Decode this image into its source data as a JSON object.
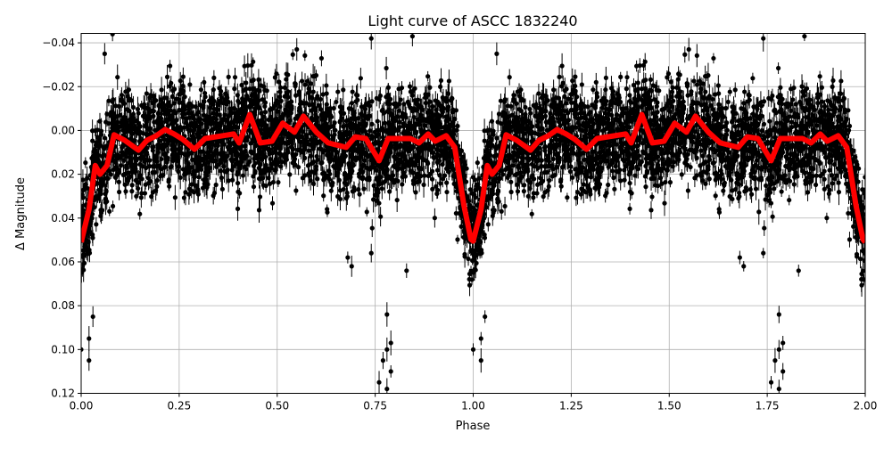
{
  "chart_data": {
    "type": "scatter",
    "title": "Light curve of ASCC 1832240",
    "xlabel": "Phase",
    "ylabel": "Δ Magnitude",
    "xlim": [
      0,
      2
    ],
    "ylim": [
      0.12,
      -0.0443
    ],
    "y_inverted": true,
    "grid": true,
    "xticks": [
      "0.00",
      "0.25",
      "0.50",
      "0.75",
      "1.00",
      "1.25",
      "1.50",
      "1.75",
      "2.00"
    ],
    "xtick_values": [
      0,
      0.25,
      0.5,
      0.75,
      1,
      1.25,
      1.5,
      1.75,
      2
    ],
    "yticks": [
      "−0.04",
      "−0.02",
      "0.00",
      "0.02",
      "0.04",
      "0.06",
      "0.08",
      "0.10",
      "0.12"
    ],
    "ytick_values": [
      -0.04,
      -0.02,
      0,
      0.02,
      0.04,
      0.06,
      0.08,
      0.1,
      0.12
    ],
    "series": [
      {
        "kind": "errorbar",
        "color": "#000000",
        "note_points": [
          [
            0.0,
            0.1
          ],
          [
            0.02,
            0.105
          ],
          [
            0.02,
            0.095
          ],
          [
            0.03,
            0.085
          ],
          [
            0.76,
            0.115
          ],
          [
            0.78,
            0.118
          ],
          [
            0.77,
            0.105
          ],
          [
            0.78,
            0.1
          ],
          [
            0.79,
            0.097
          ],
          [
            0.79,
            0.11
          ],
          [
            0.78,
            0.084
          ],
          [
            0.83,
            0.064
          ],
          [
            0.74,
            0.056
          ],
          [
            0.68,
            0.058
          ],
          [
            0.69,
            0.062
          ],
          [
            0.08,
            -0.044
          ],
          [
            0.845,
            -0.043
          ],
          [
            0.74,
            -0.042
          ],
          [
            0.55,
            -0.037
          ],
          [
            0.06,
            -0.035
          ],
          [
            1.0,
            0.1
          ],
          [
            1.02,
            0.105
          ],
          [
            1.02,
            0.095
          ],
          [
            1.03,
            0.085
          ],
          [
            1.76,
            0.115
          ],
          [
            1.78,
            0.118
          ],
          [
            1.77,
            0.105
          ],
          [
            1.78,
            0.1
          ],
          [
            1.79,
            0.097
          ],
          [
            1.79,
            0.11
          ],
          [
            1.78,
            0.084
          ],
          [
            1.83,
            0.064
          ],
          [
            1.74,
            0.056
          ],
          [
            1.68,
            0.058
          ],
          [
            1.69,
            0.062
          ],
          [
            1.845,
            -0.043
          ],
          [
            1.74,
            -0.042
          ],
          [
            1.55,
            -0.037
          ],
          [
            1.06,
            -0.035
          ]
        ]
      },
      {
        "kind": "line",
        "color": "#ff0000",
        "x": [
          0,
          0.02,
          0.036,
          0.048,
          0.066,
          0.084,
          0.111,
          0.146,
          0.168,
          0.191,
          0.214,
          0.237,
          0.259,
          0.289,
          0.316,
          0.389,
          0.403,
          0.43,
          0.457,
          0.487,
          0.514,
          0.544,
          0.567,
          0.6,
          0.63,
          0.676,
          0.699,
          0.726,
          0.76,
          0.783,
          0.84,
          0.862,
          0.885,
          0.903,
          0.931,
          0.953,
          0.976,
          0.994,
          1.0,
          1.02,
          1.036,
          1.048,
          1.066,
          1.084,
          1.111,
          1.146,
          1.168,
          1.191,
          1.214,
          1.237,
          1.259,
          1.289,
          1.316,
          1.389,
          1.403,
          1.43,
          1.457,
          1.487,
          1.514,
          1.544,
          1.567,
          1.6,
          1.63,
          1.676,
          1.699,
          1.726,
          1.76,
          1.783,
          1.84,
          1.862,
          1.885,
          1.903,
          1.931,
          1.953,
          1.976,
          1.994,
          2.0
        ],
        "y": [
          0.051,
          0.036,
          0.016,
          0.02,
          0.016,
          0.002,
          0.0045,
          0.009,
          0.0045,
          0.0025,
          -0.0004,
          0.0016,
          0.004,
          0.0086,
          0.0037,
          0.0016,
          0.0057,
          -0.0073,
          0.0057,
          0.0049,
          -0.0033,
          0.0008,
          -0.0065,
          0.0008,
          0.0057,
          0.0077,
          0.0029,
          0.0037,
          0.0138,
          0.0037,
          0.0037,
          0.0057,
          0.0016,
          0.0049,
          0.0024,
          0.0077,
          0.034,
          0.0497,
          0.0505,
          0.036,
          0.016,
          0.02,
          0.016,
          0.002,
          0.0045,
          0.009,
          0.0045,
          0.0025,
          -0.0004,
          0.0016,
          0.004,
          0.0086,
          0.0037,
          0.0016,
          0.0057,
          -0.0073,
          0.0057,
          0.0049,
          -0.0033,
          0.0008,
          -0.0065,
          0.0008,
          0.0057,
          0.0077,
          0.0029,
          0.0037,
          0.0138,
          0.0037,
          0.0037,
          0.0057,
          0.0016,
          0.0049,
          0.0024,
          0.0077,
          0.034,
          0.0497,
          0.051
        ]
      }
    ]
  }
}
